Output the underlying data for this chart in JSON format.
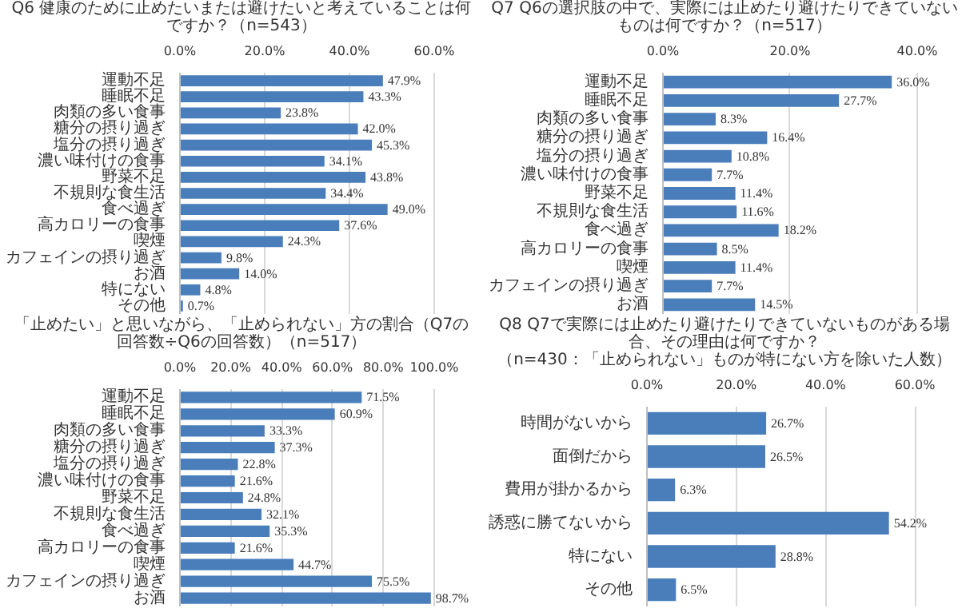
{
  "chart_data": [
    {
      "type": "bar",
      "orientation": "horizontal",
      "title": "Q6 健康のために止めたいまたは避けたいと考えていることは何ですか？（n=543）",
      "categories": [
        "運動不足",
        "睡眠不足",
        "肉類の多い食事",
        "糖分の摂り過ぎ",
        "塩分の摂り過ぎ",
        "濃い味付けの食事",
        "野菜不足",
        "不規則な食生活",
        "食べ過ぎ",
        "高カロリーの食事",
        "喫煙",
        "カフェインの摂り過ぎ",
        "お酒",
        "特にない",
        "その他"
      ],
      "values": [
        47.9,
        43.3,
        23.8,
        42.0,
        45.3,
        34.1,
        43.8,
        34.4,
        49.0,
        37.6,
        24.3,
        9.8,
        14.0,
        4.8,
        0.7
      ],
      "value_labels": [
        "47.9%",
        "43.3%",
        "23.8%",
        "42.0%",
        "45.3%",
        "34.1%",
        "43.8%",
        "34.4%",
        "49.0%",
        "37.6%",
        "24.3%",
        "9.8%",
        "14.0%",
        "4.8%",
        "0.7%"
      ],
      "color": "#4a7ebb",
      "xlim": [
        0,
        60
      ],
      "xticks": [
        {
          "value": 0,
          "label": "0.0%"
        },
        {
          "value": 20,
          "label": "20.0%"
        },
        {
          "value": 40,
          "label": "40.0%"
        },
        {
          "value": 60,
          "label": "60.0%"
        }
      ],
      "grid": "x"
    },
    {
      "type": "bar",
      "orientation": "horizontal",
      "title": "Q7 Q6の選択肢の中で、実際には止めたり避けたりできていないものは何ですか？（n=517）",
      "categories": [
        "運動不足",
        "睡眠不足",
        "肉類の多い食事",
        "糖分の摂り過ぎ",
        "塩分の摂り過ぎ",
        "濃い味付けの食事",
        "野菜不足",
        "不規則な食生活",
        "食べ過ぎ",
        "高カロリーの食事",
        "喫煙",
        "カフェインの摂り過ぎ",
        "お酒"
      ],
      "values": [
        36.0,
        27.7,
        8.3,
        16.4,
        10.8,
        7.7,
        11.4,
        11.6,
        18.2,
        8.5,
        11.4,
        7.7,
        14.5
      ],
      "value_labels": [
        "36.0%",
        "27.7%",
        "8.3%",
        "16.4%",
        "10.8%",
        "7.7%",
        "11.4%",
        "11.6%",
        "18.2%",
        "8.5%",
        "11.4%",
        "7.7%",
        "14.5%"
      ],
      "color": "#4a7ebb",
      "xlim": [
        0,
        40
      ],
      "xticks": [
        {
          "value": 0,
          "label": "0.0%"
        },
        {
          "value": 20,
          "label": "20.0%"
        },
        {
          "value": 40,
          "label": "40.0%"
        }
      ],
      "grid": "x"
    },
    {
      "type": "bar",
      "orientation": "horizontal",
      "title": "「止めたい」と思いながら、「止められない」方の割合（Q7の回答数÷Q6の回答数）（n=517）",
      "categories": [
        "運動不足",
        "睡眠不足",
        "肉類の多い食事",
        "糖分の摂り過ぎ",
        "塩分の摂り過ぎ",
        "濃い味付けの食事",
        "野菜不足",
        "不規則な食生活",
        "食べ過ぎ",
        "高カロリーの食事",
        "喫煙",
        "カフェインの摂り過ぎ",
        "お酒"
      ],
      "values": [
        71.5,
        60.9,
        33.3,
        37.3,
        22.8,
        21.6,
        24.8,
        32.1,
        35.3,
        21.6,
        44.7,
        75.5,
        98.7
      ],
      "value_labels": [
        "71.5%",
        "60.9%",
        "33.3%",
        "37.3%",
        "22.8%",
        "21.6%",
        "24.8%",
        "32.1%",
        "35.3%",
        "21.6%",
        "44.7%",
        "75.5%",
        "98.7%"
      ],
      "color": "#4a7ebb",
      "xlim": [
        0,
        100
      ],
      "xticks": [
        {
          "value": 0,
          "label": "0.0%"
        },
        {
          "value": 20,
          "label": "20.0%"
        },
        {
          "value": 40,
          "label": "40.0%"
        },
        {
          "value": 60,
          "label": "60.0%"
        },
        {
          "value": 80,
          "label": "80.0%"
        },
        {
          "value": 100,
          "label": "100.0%"
        }
      ],
      "grid": "x"
    },
    {
      "type": "bar",
      "orientation": "horizontal",
      "title": "Q8 Q7で実際には止めたり避けたりできていないものがある場合、その理由は何ですか？",
      "subtitle": "（n=430：「止められない」ものが特にない方を除いた人数）",
      "categories": [
        "時間がないから",
        "面倒だから",
        "費用が掛かるから",
        "誘惑に勝てないから",
        "特にない",
        "その他"
      ],
      "values": [
        26.7,
        26.5,
        6.3,
        54.2,
        28.8,
        6.5
      ],
      "value_labels": [
        "26.7%",
        "26.5%",
        "6.3%",
        "54.2%",
        "28.8%",
        "6.5%"
      ],
      "color": "#4a7ebb",
      "xlim": [
        0,
        60
      ],
      "xticks": [
        {
          "value": 0,
          "label": "0.0%"
        },
        {
          "value": 20,
          "label": "20.0%"
        },
        {
          "value": 40,
          "label": "40.0%"
        },
        {
          "value": 60,
          "label": "60.0%"
        }
      ],
      "grid": "x"
    }
  ]
}
